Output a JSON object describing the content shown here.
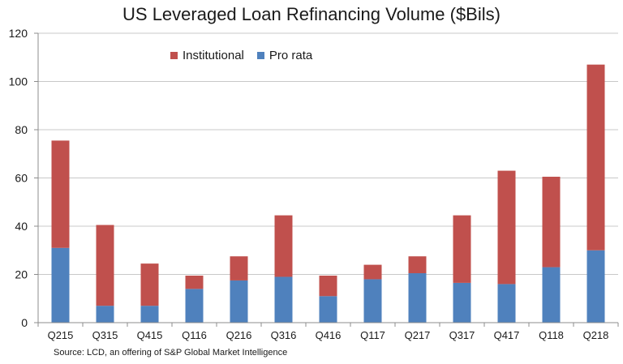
{
  "chart_data": {
    "type": "bar",
    "stacked": true,
    "title": "US Leveraged Loan Refinancing Volume ($Bils)",
    "xlabel": "",
    "ylabel": "",
    "ylim": [
      0,
      120
    ],
    "yticks": [
      0,
      20,
      40,
      60,
      80,
      100,
      120
    ],
    "ytick_labels": [
      "0",
      "20",
      "40",
      "60",
      "80",
      "100",
      "120"
    ],
    "grid": true,
    "legend_position": "top-left",
    "categories": [
      "Q215",
      "Q315",
      "Q415",
      "Q116",
      "Q216",
      "Q316",
      "Q416",
      "Q117",
      "Q217",
      "Q317",
      "Q417",
      "Q118",
      "Q218"
    ],
    "series": [
      {
        "name": "Pro rata",
        "color": "#4f81bd",
        "values": [
          31,
          7,
          7,
          14,
          17.5,
          19,
          11,
          18,
          20.5,
          16.5,
          16,
          23,
          30
        ]
      },
      {
        "name": "Institutional",
        "color": "#c0504d",
        "values": [
          44.5,
          33.5,
          17.5,
          5.5,
          10,
          25.5,
          8.5,
          6,
          7,
          28,
          47,
          37.5,
          77
        ]
      }
    ],
    "source": "Source: LCD, an offering of S&P Global Market Intelligence"
  },
  "legend": {
    "items": [
      {
        "label": "Institutional",
        "color": "#c0504d"
      },
      {
        "label": "Pro rata",
        "color": "#4f81bd"
      }
    ]
  }
}
